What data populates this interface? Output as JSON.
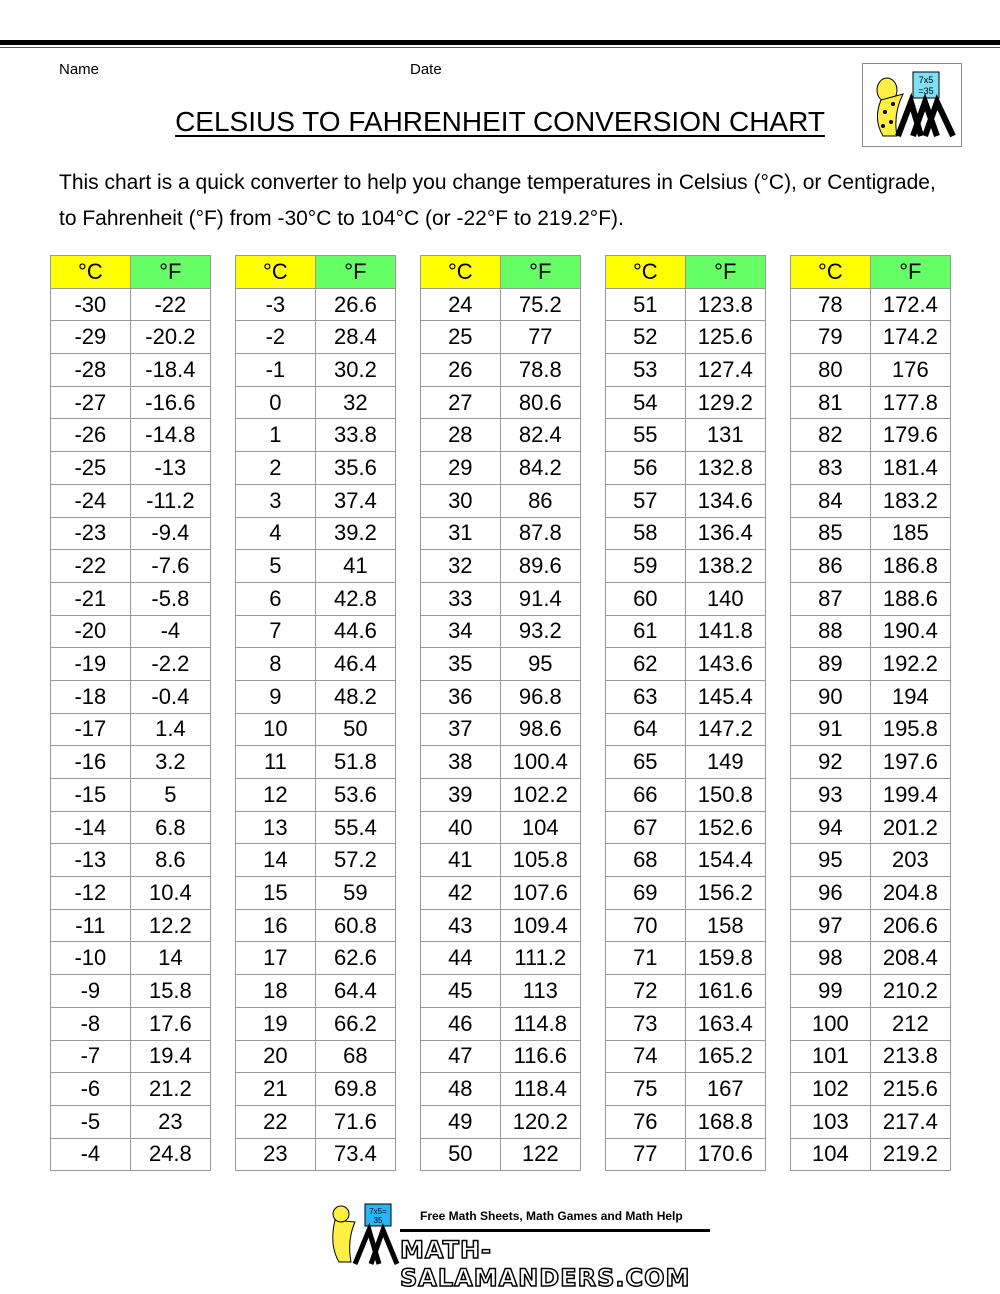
{
  "header": {
    "name_label": "Name",
    "date_label": "Date",
    "title": "CELSIUS TO FAHRENHEIT CONVERSION CHART",
    "logo_text": "7x5 =35"
  },
  "intro": "This chart is a quick converter to help you change temperatures in Celsius (°C), or Centigrade, to Fahrenheit (°F) from -30°C to 104°C (or -22°F to 219.2°F).",
  "colors": {
    "celsius_header": "#ffff00",
    "fahrenheit_header": "#66ff66"
  },
  "column_headers": {
    "c": "°C",
    "f": "°F"
  },
  "tables": [
    {
      "rows": [
        [
          "-30",
          "-22"
        ],
        [
          "-29",
          "-20.2"
        ],
        [
          "-28",
          "-18.4"
        ],
        [
          "-27",
          "-16.6"
        ],
        [
          "-26",
          "-14.8"
        ],
        [
          "-25",
          "-13"
        ],
        [
          "-24",
          "-11.2"
        ],
        [
          "-23",
          "-9.4"
        ],
        [
          "-22",
          "-7.6"
        ],
        [
          "-21",
          "-5.8"
        ],
        [
          "-20",
          "-4"
        ],
        [
          "-19",
          "-2.2"
        ],
        [
          "-18",
          "-0.4"
        ],
        [
          "-17",
          "1.4"
        ],
        [
          "-16",
          "3.2"
        ],
        [
          "-15",
          "5"
        ],
        [
          "-14",
          "6.8"
        ],
        [
          "-13",
          "8.6"
        ],
        [
          "-12",
          "10.4"
        ],
        [
          "-11",
          "12.2"
        ],
        [
          "-10",
          "14"
        ],
        [
          "-9",
          "15.8"
        ],
        [
          "-8",
          "17.6"
        ],
        [
          "-7",
          "19.4"
        ],
        [
          "-6",
          "21.2"
        ],
        [
          "-5",
          "23"
        ],
        [
          "-4",
          "24.8"
        ]
      ]
    },
    {
      "rows": [
        [
          "-3",
          "26.6"
        ],
        [
          "-2",
          "28.4"
        ],
        [
          "-1",
          "30.2"
        ],
        [
          "0",
          "32"
        ],
        [
          "1",
          "33.8"
        ],
        [
          "2",
          "35.6"
        ],
        [
          "3",
          "37.4"
        ],
        [
          "4",
          "39.2"
        ],
        [
          "5",
          "41"
        ],
        [
          "6",
          "42.8"
        ],
        [
          "7",
          "44.6"
        ],
        [
          "8",
          "46.4"
        ],
        [
          "9",
          "48.2"
        ],
        [
          "10",
          "50"
        ],
        [
          "11",
          "51.8"
        ],
        [
          "12",
          "53.6"
        ],
        [
          "13",
          "55.4"
        ],
        [
          "14",
          "57.2"
        ],
        [
          "15",
          "59"
        ],
        [
          "16",
          "60.8"
        ],
        [
          "17",
          "62.6"
        ],
        [
          "18",
          "64.4"
        ],
        [
          "19",
          "66.2"
        ],
        [
          "20",
          "68"
        ],
        [
          "21",
          "69.8"
        ],
        [
          "22",
          "71.6"
        ],
        [
          "23",
          "73.4"
        ]
      ]
    },
    {
      "rows": [
        [
          "24",
          "75.2"
        ],
        [
          "25",
          "77"
        ],
        [
          "26",
          "78.8"
        ],
        [
          "27",
          "80.6"
        ],
        [
          "28",
          "82.4"
        ],
        [
          "29",
          "84.2"
        ],
        [
          "30",
          "86"
        ],
        [
          "31",
          "87.8"
        ],
        [
          "32",
          "89.6"
        ],
        [
          "33",
          "91.4"
        ],
        [
          "34",
          "93.2"
        ],
        [
          "35",
          "95"
        ],
        [
          "36",
          "96.8"
        ],
        [
          "37",
          "98.6"
        ],
        [
          "38",
          "100.4"
        ],
        [
          "39",
          "102.2"
        ],
        [
          "40",
          "104"
        ],
        [
          "41",
          "105.8"
        ],
        [
          "42",
          "107.6"
        ],
        [
          "43",
          "109.4"
        ],
        [
          "44",
          "111.2"
        ],
        [
          "45",
          "113"
        ],
        [
          "46",
          "114.8"
        ],
        [
          "47",
          "116.6"
        ],
        [
          "48",
          "118.4"
        ],
        [
          "49",
          "120.2"
        ],
        [
          "50",
          "122"
        ]
      ]
    },
    {
      "rows": [
        [
          "51",
          "123.8"
        ],
        [
          "52",
          "125.6"
        ],
        [
          "53",
          "127.4"
        ],
        [
          "54",
          "129.2"
        ],
        [
          "55",
          "131"
        ],
        [
          "56",
          "132.8"
        ],
        [
          "57",
          "134.6"
        ],
        [
          "58",
          "136.4"
        ],
        [
          "59",
          "138.2"
        ],
        [
          "60",
          "140"
        ],
        [
          "61",
          "141.8"
        ],
        [
          "62",
          "143.6"
        ],
        [
          "63",
          "145.4"
        ],
        [
          "64",
          "147.2"
        ],
        [
          "65",
          "149"
        ],
        [
          "66",
          "150.8"
        ],
        [
          "67",
          "152.6"
        ],
        [
          "68",
          "154.4"
        ],
        [
          "69",
          "156.2"
        ],
        [
          "70",
          "158"
        ],
        [
          "71",
          "159.8"
        ],
        [
          "72",
          "161.6"
        ],
        [
          "73",
          "163.4"
        ],
        [
          "74",
          "165.2"
        ],
        [
          "75",
          "167"
        ],
        [
          "76",
          "168.8"
        ],
        [
          "77",
          "170.6"
        ]
      ]
    },
    {
      "rows": [
        [
          "78",
          "172.4"
        ],
        [
          "79",
          "174.2"
        ],
        [
          "80",
          "176"
        ],
        [
          "81",
          "177.8"
        ],
        [
          "82",
          "179.6"
        ],
        [
          "83",
          "181.4"
        ],
        [
          "84",
          "183.2"
        ],
        [
          "85",
          "185"
        ],
        [
          "86",
          "186.8"
        ],
        [
          "87",
          "188.6"
        ],
        [
          "88",
          "190.4"
        ],
        [
          "89",
          "192.2"
        ],
        [
          "90",
          "194"
        ],
        [
          "91",
          "195.8"
        ],
        [
          "92",
          "197.6"
        ],
        [
          "93",
          "199.4"
        ],
        [
          "94",
          "201.2"
        ],
        [
          "95",
          "203"
        ],
        [
          "96",
          "204.8"
        ],
        [
          "97",
          "206.6"
        ],
        [
          "98",
          "208.4"
        ],
        [
          "99",
          "210.2"
        ],
        [
          "100",
          "212"
        ],
        [
          "101",
          "213.8"
        ],
        [
          "102",
          "215.6"
        ],
        [
          "103",
          "217.4"
        ],
        [
          "104",
          "219.2"
        ]
      ]
    }
  ],
  "footer": {
    "tagline": "Free Math Sheets, Math Games and Math Help",
    "site": "MATH-SALAMANDERS.COM",
    "logo_text": "7x5= 35"
  }
}
